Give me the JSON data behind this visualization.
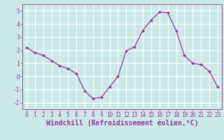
{
  "x": [
    0,
    1,
    2,
    3,
    4,
    5,
    6,
    7,
    8,
    9,
    10,
    11,
    12,
    13,
    14,
    15,
    16,
    17,
    18,
    19,
    20,
    21,
    22,
    23
  ],
  "y": [
    2.2,
    1.8,
    1.6,
    1.2,
    0.8,
    0.6,
    0.2,
    -1.1,
    -1.7,
    -1.6,
    -0.8,
    0.0,
    1.95,
    2.25,
    3.5,
    4.3,
    4.9,
    4.85,
    3.5,
    1.6,
    1.0,
    0.9,
    0.4,
    -0.8
  ],
  "line_color": "#993399",
  "marker": "D",
  "marker_size": 2.0,
  "bg_color": "#cce8e8",
  "grid_color": "#ffffff",
  "xlabel": "Windchill (Refroidissement éolien,°C)",
  "xlabel_color": "#993399",
  "ylim": [
    -2.5,
    5.5
  ],
  "xlim": [
    -0.5,
    23.5
  ],
  "yticks": [
    -2,
    -1,
    0,
    1,
    2,
    3,
    4,
    5
  ],
  "xticks": [
    0,
    1,
    2,
    3,
    4,
    5,
    6,
    7,
    8,
    9,
    10,
    11,
    12,
    13,
    14,
    15,
    16,
    17,
    18,
    19,
    20,
    21,
    22,
    23
  ],
  "tick_color": "#993399",
  "tick_fontsize": 5.5,
  "xlabel_fontsize": 7.0
}
